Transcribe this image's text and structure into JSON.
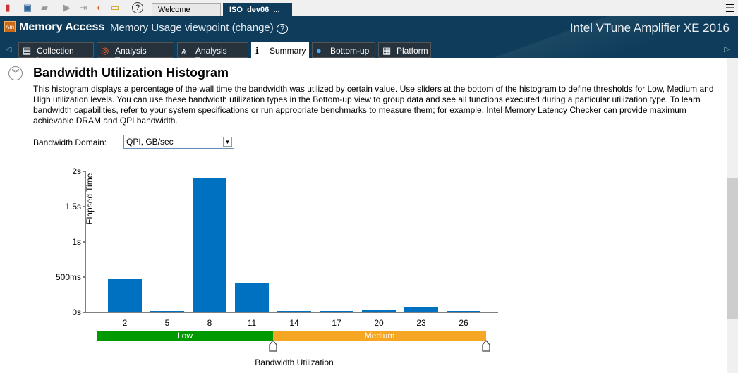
{
  "toolbar": {
    "icons": [
      "chart-icon",
      "new-project-icon",
      "open-icon",
      "start-icon",
      "attach-icon",
      "compare-icon",
      "folder-icon",
      "help-icon"
    ],
    "tabs": [
      {
        "label": "Welcome"
      },
      {
        "label": "ISO_dev06_..."
      }
    ],
    "close": "✕"
  },
  "header": {
    "title": "Memory Access",
    "viewpoint": "Memory Usage viewpoint (",
    "change": "change",
    "viewpoint_end": ")",
    "help": "?",
    "product": "Intel VTune Amplifier XE 2016",
    "logo": "Am"
  },
  "tabs": [
    {
      "label": "Collection Log",
      "icon": "▤"
    },
    {
      "label": "Analysis Target",
      "icon": "◎"
    },
    {
      "label": "Analysis Type",
      "icon": "⩓"
    },
    {
      "label": "Summary",
      "icon": "ℹ"
    },
    {
      "label": "Bottom-up",
      "icon": "●"
    },
    {
      "label": "Platform",
      "icon": "▦"
    }
  ],
  "section": {
    "title": "Bandwidth Utilization Histogram",
    "description": "This histogram displays a percentage of the wall time the bandwidth was utilized by certain value. Use sliders at the bottom of the histogram to define thresholds for Low, Medium and High utilization levels. You can use these bandwidth utilization types in the Bottom-up view to group data and see all functions executed during a particular utilization type. To learn bandwidth capabilities, refer to your system specifications or run appropriate benchmarks to measure them; for example, Intel Memory Latency Checker can provide maximum achievable DRAM and QPI bandwidth.",
    "domain_label": "Bandwidth Domain:",
    "domain_value": "QPI, GB/sec"
  },
  "chart_data": {
    "type": "bar",
    "categories": [
      "2",
      "5",
      "8",
      "11",
      "14",
      "17",
      "20",
      "23",
      "26"
    ],
    "values": [
      0.48,
      0.02,
      1.91,
      0.42,
      0.02,
      0.02,
      0.03,
      0.07,
      0.02
    ],
    "ylabel": "Elapsed Time",
    "xlabel": "Bandwidth Utilization",
    "ylim": [
      0,
      2
    ],
    "yticks": [
      {
        "v": 0,
        "label": "0s"
      },
      {
        "v": 0.5,
        "label": "500ms"
      },
      {
        "v": 1,
        "label": "1s"
      },
      {
        "v": 1.5,
        "label": "1.5s"
      },
      {
        "v": 2,
        "label": "2s"
      }
    ],
    "bar_color": "#0070c0",
    "levels": [
      {
        "label": "Low",
        "color": "#009900",
        "from": 0,
        "to": 12.5
      },
      {
        "label": "Medium",
        "color": "#f5a623",
        "from": 12.5,
        "to": 27.6
      }
    ]
  }
}
